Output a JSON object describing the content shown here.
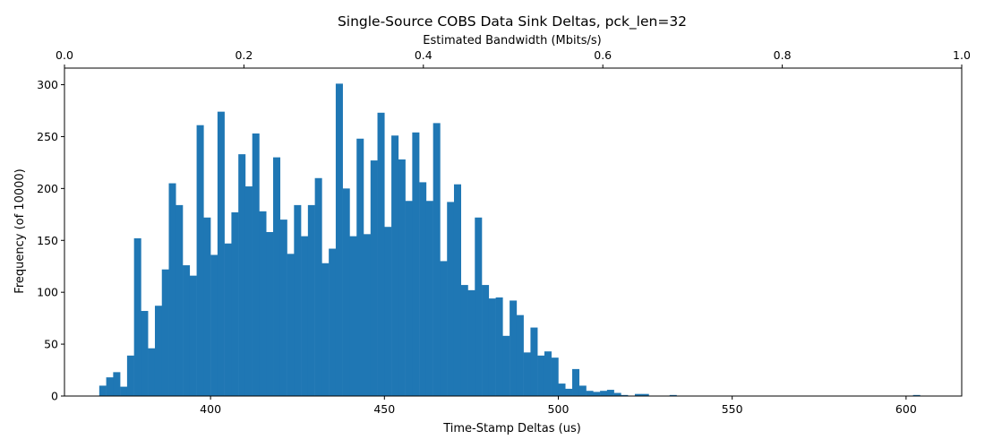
{
  "chart_data": {
    "type": "histogram",
    "title": "Single-Source COBS Data Sink Deltas, pck_len=32",
    "xlabel": "Time-Stamp Deltas (us)",
    "ylabel": "Frequency (of 10000)",
    "top_xlabel": "Estimated Bandwidth (Mbits/s)",
    "xlim": [
      358,
      616
    ],
    "ylim": [
      0,
      316
    ],
    "top_xlim": [
      0.0,
      1.0
    ],
    "bar_color": "#1f77b4",
    "x_ticks": [
      400,
      450,
      500,
      550,
      600
    ],
    "x_tick_labels": [
      "400",
      "450",
      "500",
      "550",
      "600"
    ],
    "y_ticks": [
      0,
      50,
      100,
      150,
      200,
      250,
      300
    ],
    "y_tick_labels": [
      "0",
      "50",
      "100",
      "150",
      "200",
      "250",
      "300"
    ],
    "top_ticks": [
      0.0,
      0.2,
      0.4,
      0.6,
      0.8,
      1.0
    ],
    "top_tick_labels": [
      "0.0",
      "0.2",
      "0.4",
      "0.6",
      "0.8",
      "1.0"
    ],
    "bin_start": 368,
    "bin_width": 2.0,
    "values": [
      10,
      18,
      23,
      9,
      39,
      152,
      82,
      46,
      87,
      122,
      205,
      184,
      126,
      116,
      261,
      172,
      136,
      274,
      147,
      177,
      233,
      202,
      253,
      178,
      158,
      230,
      170,
      137,
      184,
      154,
      184,
      210,
      128,
      142,
      301,
      200,
      154,
      248,
      156,
      227,
      273,
      163,
      251,
      228,
      188,
      254,
      206,
      188,
      263,
      130,
      187,
      204,
      107,
      102,
      172,
      107,
      94,
      95,
      58,
      92,
      78,
      42,
      66,
      39,
      43,
      37,
      12,
      7,
      26,
      10,
      5,
      4,
      5,
      6,
      3,
      1,
      0,
      2,
      2,
      0,
      0,
      0,
      1,
      0,
      0,
      0,
      0,
      0,
      0,
      0,
      0,
      0,
      0,
      0,
      0,
      0,
      0,
      0,
      0,
      0,
      0,
      0,
      0,
      0,
      0,
      0,
      0,
      0,
      0,
      0,
      0,
      0,
      0,
      0,
      0,
      0,
      0,
      1
    ]
  }
}
